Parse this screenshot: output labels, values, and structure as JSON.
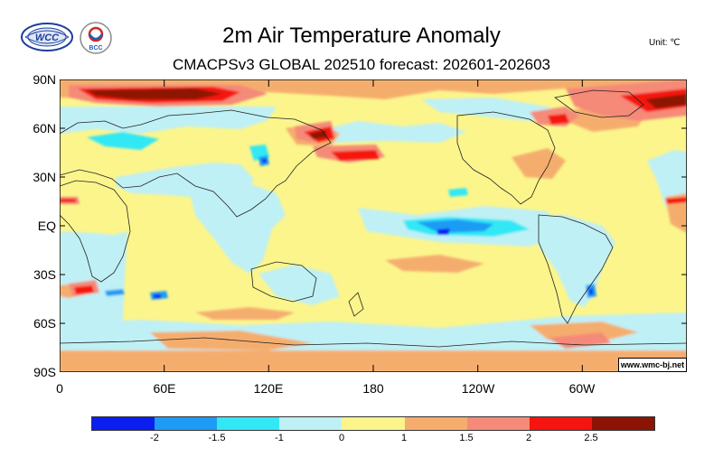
{
  "header": {
    "title": "2m Air Temperature Anomaly",
    "subtitle": "CMACPSv3 GLOBAL 202510 forecast: 202601-202603",
    "unit": "Unit: ℃",
    "logo_wmc_text": "WCC",
    "logo_bcc_text": "BCC"
  },
  "map": {
    "lat_labels": [
      "90N",
      "60N",
      "30N",
      "EQ",
      "30S",
      "60S",
      "90S"
    ],
    "lon_labels": [
      "0",
      "60E",
      "120E",
      "180",
      "120W",
      "60W"
    ],
    "credit": "www.wmc-bj.net"
  },
  "legend": {
    "labels": [
      "-2",
      "-1.5",
      "-1",
      "0",
      "1",
      "1.5",
      "2",
      "2.5"
    ],
    "colors": [
      "#0a1ef0",
      "#1e9bf5",
      "#33e8f5",
      "#bff0f5",
      "#fbf58c",
      "#f5ad6e",
      "#f58a78",
      "#f5140f",
      "#8c1405"
    ]
  }
}
